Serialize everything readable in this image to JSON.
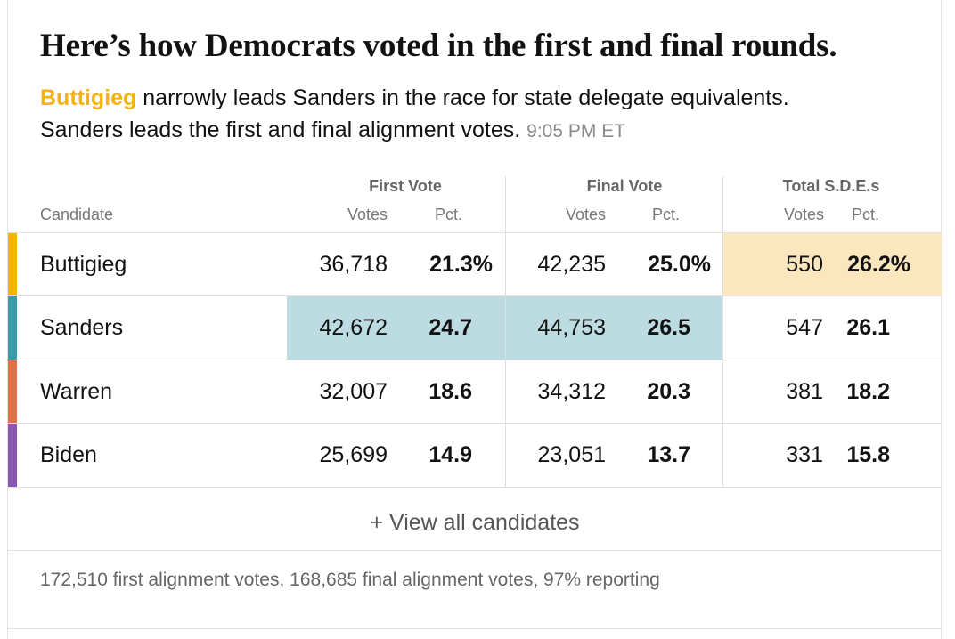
{
  "headline": "Here’s how Democrats voted in the first and final rounds.",
  "summary": {
    "leader": "Buttigieg",
    "line1_rest": " narrowly leads Sanders in the race for state delegate equivalents.",
    "line2": "Sanders leads the first and final alignment votes.",
    "timestamp": "9:05 PM ET"
  },
  "table": {
    "candidate_header": "Candidate",
    "groups": [
      {
        "title": "First Vote",
        "votes_label": "Votes",
        "pct_label": "Pct."
      },
      {
        "title": "Final Vote",
        "votes_label": "Votes",
        "pct_label": "Pct."
      },
      {
        "title": "Total S.D.E.s",
        "votes_label": "Votes",
        "pct_label": "Pct."
      }
    ],
    "rows": [
      {
        "name": "Buttigieg",
        "first_votes": "36,718",
        "first_pct": "21.3%",
        "final_votes": "42,235",
        "final_pct": "25.0%",
        "sde_votes": "550",
        "sde_pct": "26.2%"
      },
      {
        "name": "Sanders",
        "first_votes": "42,672",
        "first_pct": "24.7",
        "final_votes": "44,753",
        "final_pct": "26.5",
        "sde_votes": "547",
        "sde_pct": "26.1"
      },
      {
        "name": "Warren",
        "first_votes": "32,007",
        "first_pct": "18.6",
        "final_votes": "34,312",
        "final_pct": "20.3",
        "sde_votes": "381",
        "sde_pct": "18.2"
      },
      {
        "name": "Biden",
        "first_votes": "25,699",
        "first_pct": "14.9",
        "final_votes": "23,051",
        "final_pct": "13.7",
        "sde_votes": "331",
        "sde_pct": "15.8"
      }
    ]
  },
  "view_all_label": "+ View all candidates",
  "footer": "172,510 first alignment votes, 168,685 final alignment votes, 97% reporting",
  "colors": {
    "buttigieg": "#f5b30d",
    "sanders": "#3a9aa8",
    "warren": "#e07045",
    "biden": "#8a58b0",
    "sanders_highlight": "#bcdce1",
    "buttigieg_highlight": "#fbe6be"
  }
}
